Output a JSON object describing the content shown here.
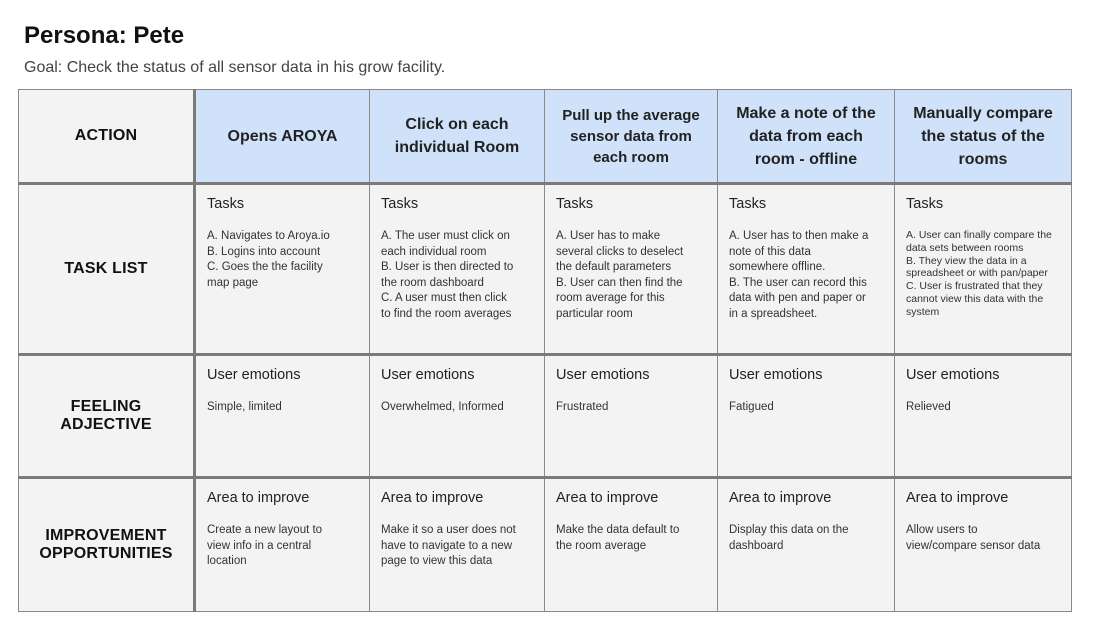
{
  "persona_title": "Persona: Pete",
  "goal": "Goal: Check the status of all sensor data in his grow facility.",
  "row_labels": {
    "action": "ACTION",
    "task_list": [
      "TASK LIST"
    ],
    "feeling": [
      "FEELING",
      "ADJECTIVE"
    ],
    "improvement": [
      "IMPROVEMENT",
      "OPPORTUNITIES"
    ]
  },
  "section_heads": {
    "tasks": "Tasks",
    "emotions": "User emotions",
    "improve": "Area to improve"
  },
  "stages": [
    {
      "title": "Opens AROYA",
      "tasks": [
        "A. Navigates to Aroya.io",
        "B. Logins into account",
        "C. Goes the the facility",
        "map page"
      ],
      "emotion": "Simple, limited",
      "improve": [
        "Create a new layout to",
        "view info in a central",
        "location"
      ]
    },
    {
      "title": "Click on each individual Room",
      "tasks": [
        "A. The user must click on",
        "each individual room",
        "B. User is then directed to",
        "the room dashboard",
        "C. A user must then click",
        "to find the room averages"
      ],
      "emotion": "Overwhelmed, Informed",
      "improve": [
        "Make it so a user does not",
        "have to navigate to a new",
        "page to view this data"
      ]
    },
    {
      "title": "Pull up the average sensor data from each room",
      "tasks": [
        "A. User has to make",
        "several clicks to deselect",
        "the default parameters",
        "B. User can then find the",
        "room average for this",
        "particular room"
      ],
      "emotion": "Frustrated",
      "improve": [
        "Make the data default to",
        "the room average"
      ]
    },
    {
      "title": "Make a note of the data from each room - offline",
      "tasks": [
        "A. User has to then make a",
        "note of this data",
        "somewhere offline.",
        "B. The user can record this",
        "data with pen and paper or",
        "in a spreadsheet."
      ],
      "emotion": "Fatigued",
      "improve": [
        "Display this data on the",
        "dashboard"
      ]
    },
    {
      "title": "Manually compare the status of the rooms",
      "tasks": [
        "A. User can finally compare the",
        "data sets between rooms",
        "B. They view the data in a",
        "spreadsheet or with pan/paper",
        "C. User is frustrated that they",
        "cannot view this data with the",
        "system"
      ],
      "emotion": "Relieved",
      "improve": [
        "Allow users to",
        "view/compare sensor data"
      ]
    }
  ]
}
